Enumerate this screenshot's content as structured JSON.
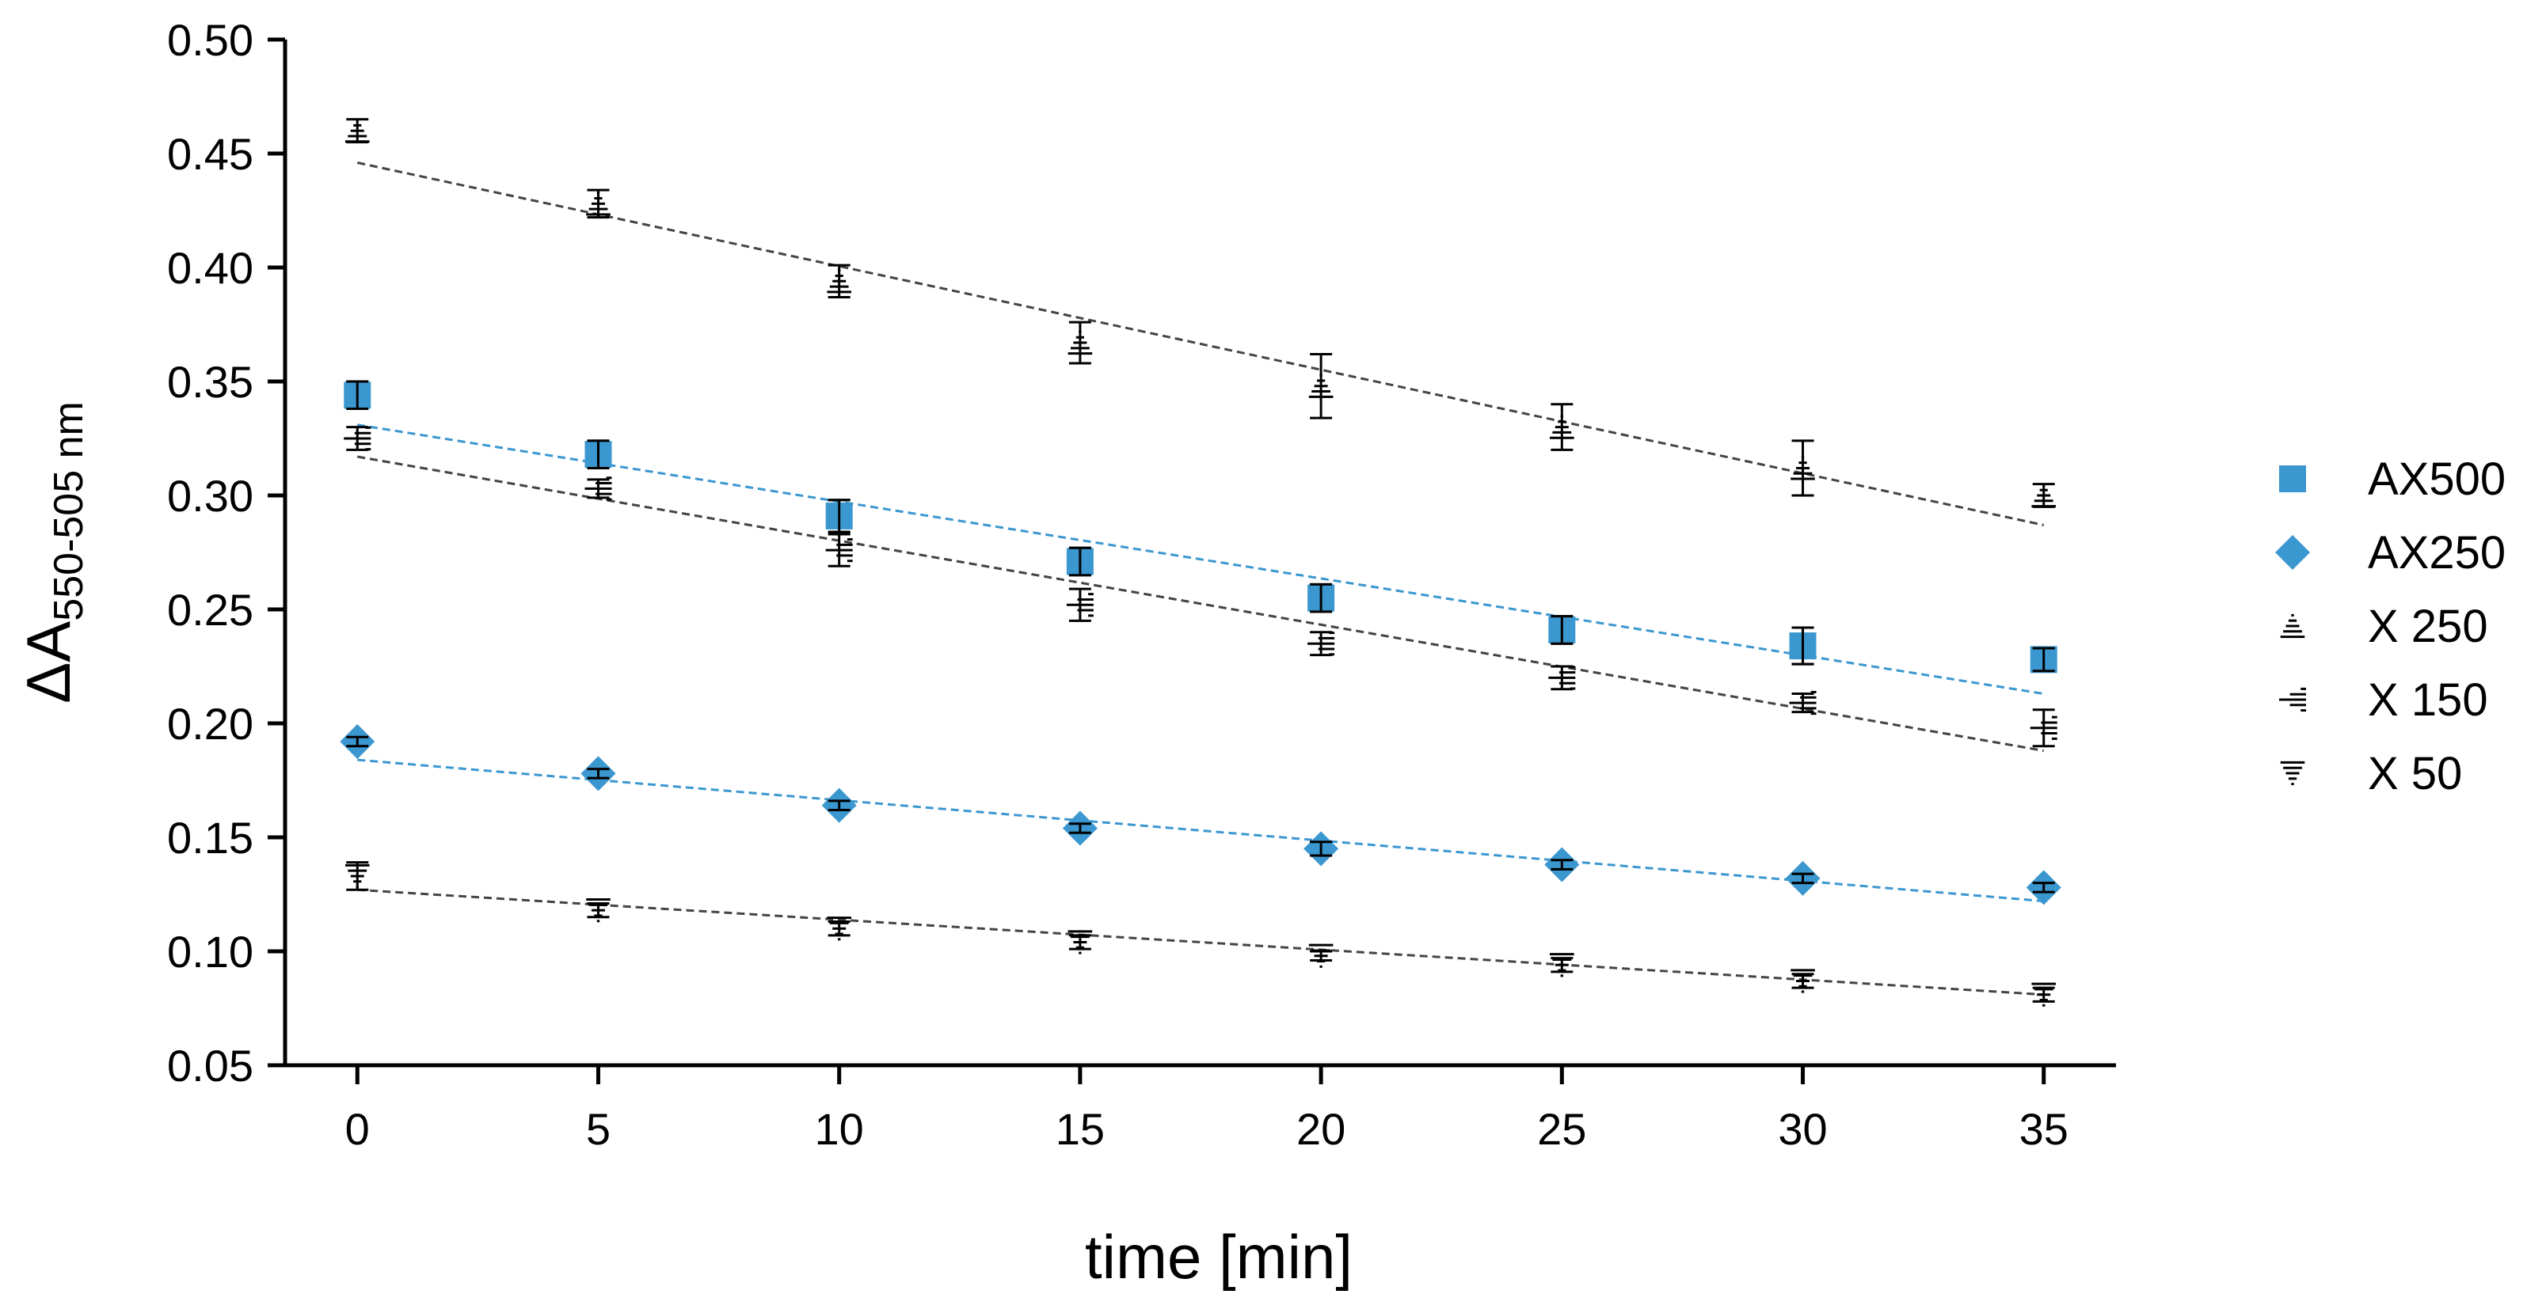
{
  "chart_data": {
    "type": "scatter",
    "xlabel": "time [min]",
    "ylabel": {
      "main": "ΔA",
      "subscript": "550-505 nm"
    },
    "xlim": [
      -1.5,
      36.5
    ],
    "ylim": [
      0.05,
      0.5
    ],
    "xticks": [
      0,
      5,
      10,
      15,
      20,
      25,
      30,
      35
    ],
    "yticks": [
      0.05,
      0.1,
      0.15,
      0.2,
      0.25,
      0.3,
      0.35,
      0.4,
      0.45,
      0.5
    ],
    "x": [
      0,
      5,
      10,
      15,
      20,
      25,
      30,
      35
    ],
    "legend_position": "right",
    "series": [
      {
        "name": "AX500",
        "marker": "square",
        "color": "#3b97cf",
        "values": [
          0.344,
          0.318,
          0.291,
          0.271,
          0.255,
          0.241,
          0.234,
          0.228
        ],
        "errors": [
          0.006,
          0.006,
          0.007,
          0.006,
          0.006,
          0.006,
          0.008,
          0.005
        ],
        "fit": [
          0.331,
          0.213
        ]
      },
      {
        "name": "AX250",
        "marker": "diamond",
        "color": "#3b97cf",
        "values": [
          0.192,
          0.178,
          0.164,
          0.154,
          0.145,
          0.138,
          0.132,
          0.128
        ],
        "errors": [
          0.002,
          0.002,
          0.002,
          0.002,
          0.003,
          0.002,
          0.002,
          0.002
        ],
        "fit": [
          0.184,
          0.122
        ]
      },
      {
        "name": "X 250",
        "marker": "triangle-up",
        "color": "#000000",
        "values": [
          0.46,
          0.428,
          0.394,
          0.367,
          0.348,
          0.33,
          0.312,
          0.3
        ],
        "errors": [
          0.005,
          0.006,
          0.007,
          0.009,
          0.014,
          0.01,
          0.012,
          0.005
        ],
        "fit": [
          0.446,
          0.287
        ]
      },
      {
        "name": "X 150",
        "marker": "triangle-left",
        "color": "#000000",
        "values": [
          0.325,
          0.303,
          0.276,
          0.252,
          0.235,
          0.22,
          0.209,
          0.198
        ],
        "errors": [
          0.005,
          0.004,
          0.007,
          0.007,
          0.005,
          0.005,
          0.004,
          0.008
        ],
        "fit": [
          0.317,
          0.188
        ]
      },
      {
        "name": "X 50",
        "marker": "triangle-down",
        "color": "#000000",
        "values": [
          0.133,
          0.118,
          0.11,
          0.104,
          0.098,
          0.094,
          0.087,
          0.081
        ],
        "errors": [
          0.006,
          0.003,
          0.003,
          0.003,
          0.002,
          0.003,
          0.003,
          0.003
        ],
        "fit": [
          0.127,
          0.081
        ]
      }
    ]
  }
}
